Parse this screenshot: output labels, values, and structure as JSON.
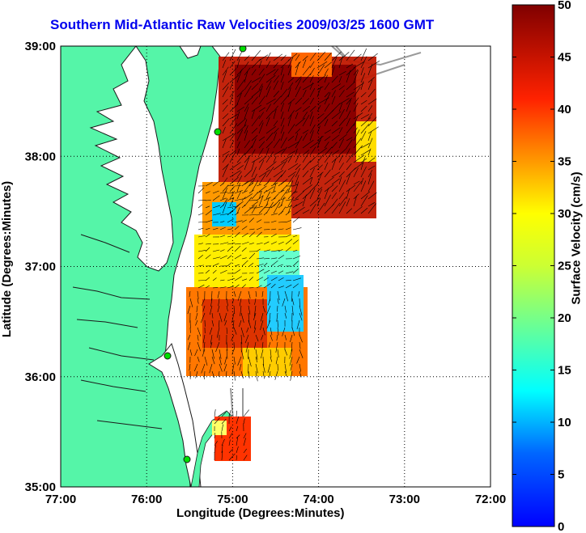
{
  "title": "Southern Mid-Atlantic Raw Velocities 2009/03/25 1600 GMT",
  "xlabel": "Longitude (Degrees:Minutes)",
  "ylabel": "Latitude (Degrees:Minutes)",
  "colorbar": {
    "label": "Surface Velocity (cm/s)",
    "ticks": [
      "0",
      "5",
      "10",
      "15",
      "20",
      "25",
      "30",
      "35",
      "40",
      "45",
      "50"
    ],
    "range": [
      0,
      50
    ]
  },
  "colors": {
    "land": "#55f5a8",
    "title": "#0000ee",
    "coast": "#1a1a1a",
    "grid": "#000000"
  },
  "chart_data": {
    "type": "heatmap",
    "x_ticks": [
      "77:00",
      "76:00",
      "75:00",
      "74:00",
      "73:00",
      "72:00"
    ],
    "y_ticks": [
      "39:00",
      "38:00",
      "37:00",
      "36:00",
      "35:00"
    ],
    "xlim": [
      -77,
      -72
    ],
    "ylim": [
      35,
      39
    ],
    "grid": true,
    "regions": [
      {
        "lon_min": -75.2,
        "lon_max": -73.6,
        "lat_min": 37.8,
        "lat_max": 38.8,
        "velocity": 45
      },
      {
        "lon_min": -75.5,
        "lon_max": -74.0,
        "lat_min": 37.1,
        "lat_max": 37.8,
        "velocity": 36
      },
      {
        "lon_min": -75.5,
        "lon_max": -74.2,
        "lat_min": 36.7,
        "lat_max": 37.1,
        "velocity": 24
      },
      {
        "lon_min": -75.6,
        "lon_max": -74.3,
        "lat_min": 36.0,
        "lat_max": 36.7,
        "velocity": 38
      },
      {
        "lon_min": -74.7,
        "lon_max": -74.2,
        "lat_min": 36.3,
        "lat_max": 37.0,
        "velocity": 12
      },
      {
        "lon_min": -75.2,
        "lon_max": -74.9,
        "lat_min": 35.2,
        "lat_max": 35.6,
        "velocity": 40
      }
    ]
  }
}
